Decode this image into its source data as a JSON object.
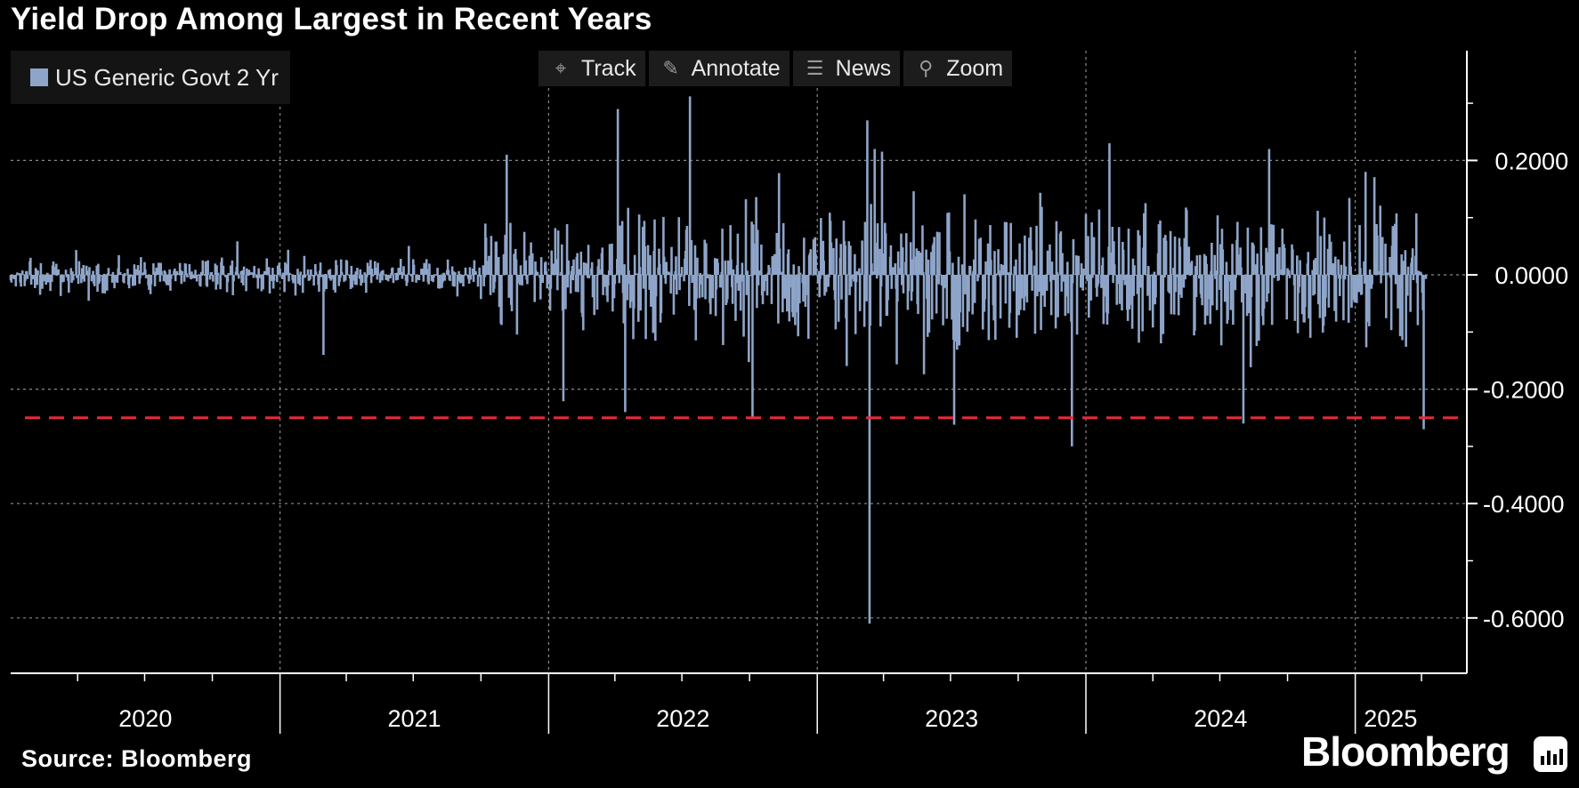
{
  "title": "Yield Drop Among Largest in Recent Years",
  "legend": {
    "label": "US Generic Govt 2 Yr",
    "color": "#8ea5c9"
  },
  "toolbar": [
    {
      "label": "Track",
      "icon": "crosshair-icon"
    },
    {
      "label": "Annotate",
      "icon": "pencil-icon"
    },
    {
      "label": "News",
      "icon": "news-icon"
    },
    {
      "label": "Zoom",
      "icon": "magnifier-icon"
    }
  ],
  "source": "Source: Bloomberg",
  "brand": "Bloomberg",
  "chart_data": {
    "type": "bar",
    "title": "Yield Drop Among Largest in Recent Years",
    "series_name": "US Generic Govt 2 Yr",
    "x_range": [
      "2020-01-01",
      "2025-04-07"
    ],
    "ylim": [
      -0.7,
      0.3
    ],
    "y_ticks": [
      0.2,
      0.0,
      -0.2,
      -0.4,
      -0.6
    ],
    "y_tick_labels": [
      "0.2000",
      "0.0000",
      "-0.2000",
      "-0.4000",
      "-0.6000"
    ],
    "x_tick_labels": [
      "2020",
      "2021",
      "2022",
      "2023",
      "2024",
      "2025"
    ],
    "reference_line": {
      "value": -0.25,
      "color": "#e8283c",
      "style": "dashed"
    },
    "grid": true,
    "key_points": [
      {
        "date": "2021-03-01",
        "value": -0.14
      },
      {
        "date": "2021-11-05",
        "value": 0.21
      },
      {
        "date": "2022-04-05",
        "value": 0.29
      },
      {
        "date": "2022-04-15",
        "value": -0.24
      },
      {
        "date": "2022-10-05",
        "value": -0.25
      },
      {
        "date": "2023-03-10",
        "value": 0.27
      },
      {
        "date": "2023-03-13",
        "value": -0.61
      },
      {
        "date": "2023-03-20",
        "value": 0.22
      },
      {
        "date": "2023-12-13",
        "value": -0.3
      },
      {
        "date": "2024-02-02",
        "value": 0.23
      },
      {
        "date": "2024-08-02",
        "value": -0.26
      },
      {
        "date": "2024-09-06",
        "value": 0.22
      },
      {
        "date": "2025-01-15",
        "value": 0.18
      },
      {
        "date": "2025-04-04",
        "value": -0.27
      }
    ]
  }
}
